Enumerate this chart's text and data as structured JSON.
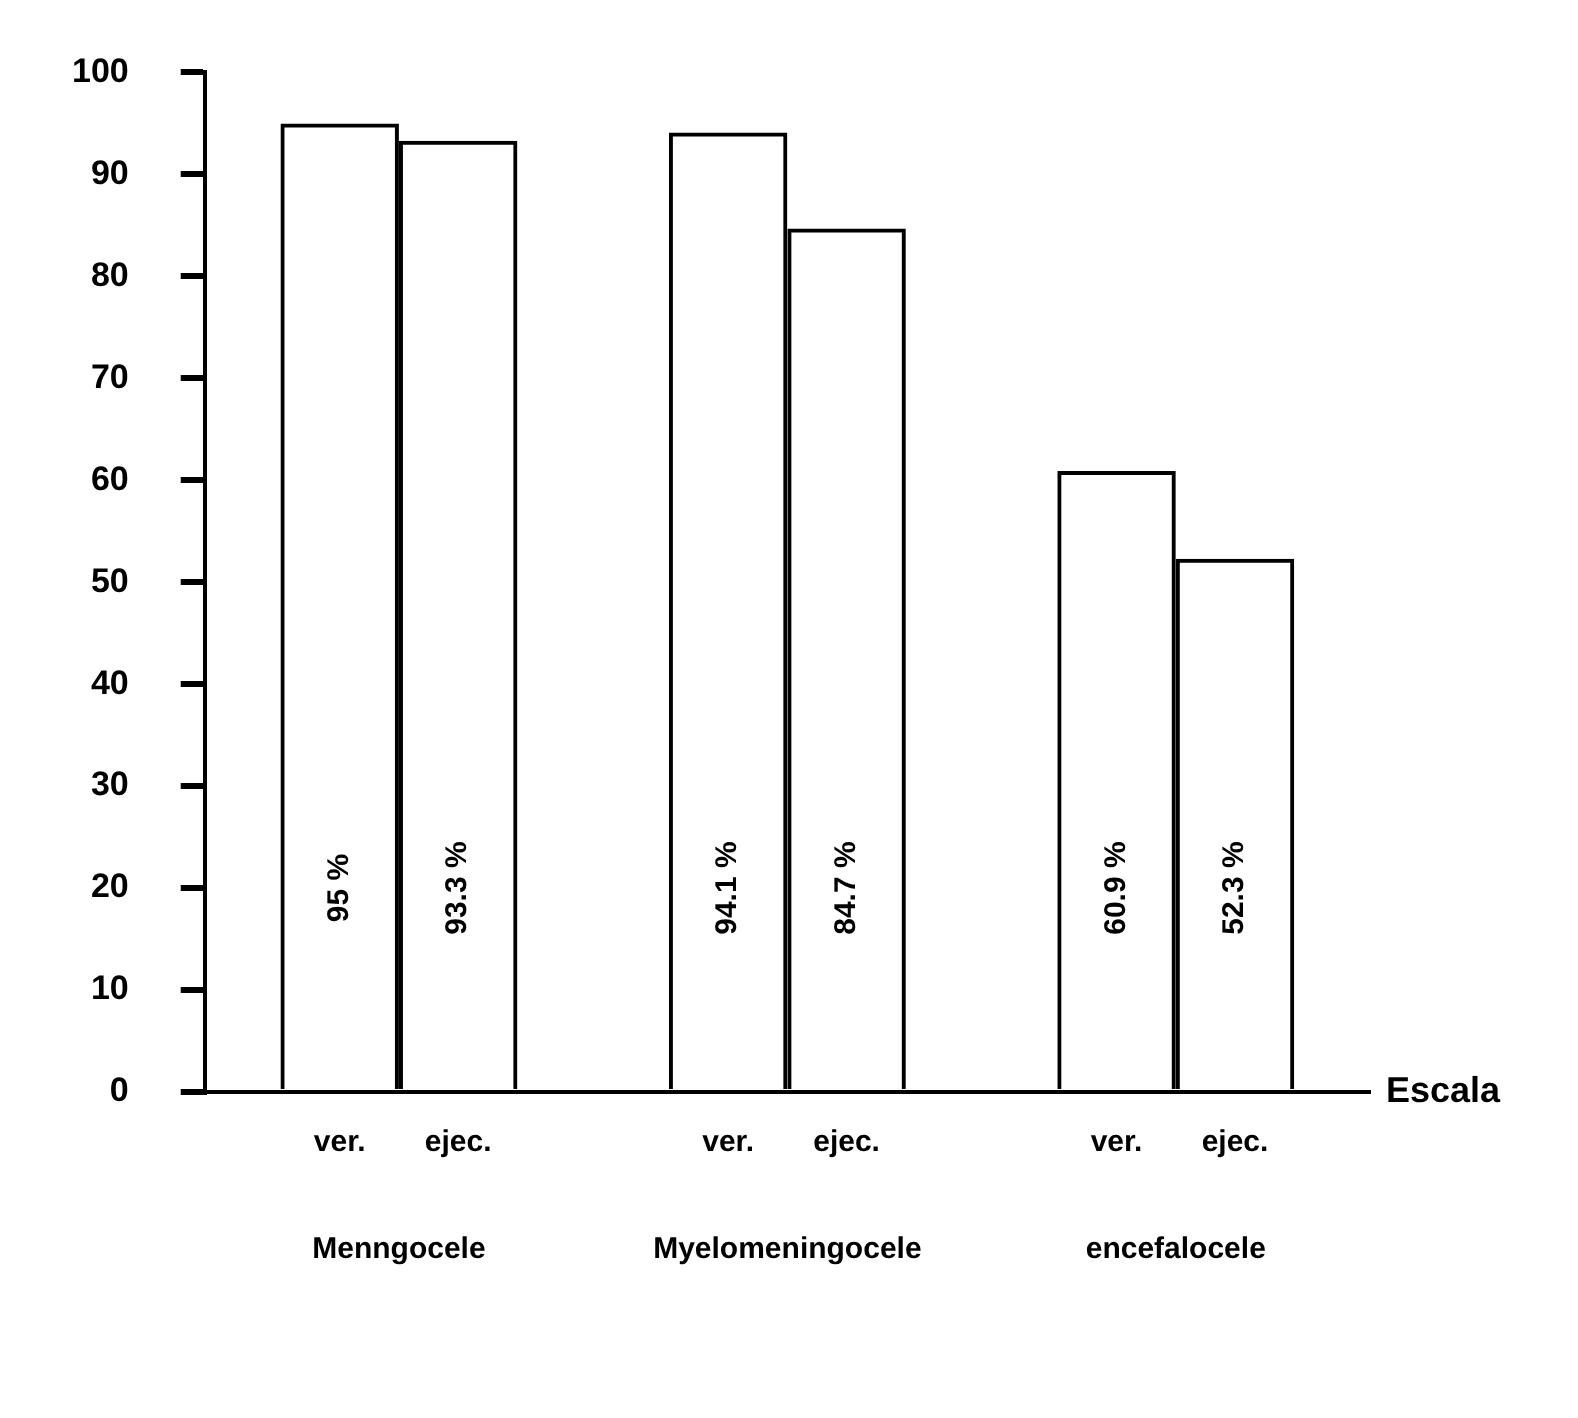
{
  "chart_data": {
    "type": "bar",
    "xlabel": "Escala",
    "categories": [
      "Menngocele",
      "Myelomeningocele",
      "encefalocele"
    ],
    "series": [
      {
        "name": "ver.",
        "color": "#000000",
        "values": [
          95,
          94.1,
          60.9
        ],
        "value_labels": [
          "95 %",
          "94.1 %",
          "60.9 %"
        ]
      },
      {
        "name": "ejec.",
        "color": "#000000",
        "values": [
          93.3,
          84.7,
          52.3
        ],
        "value_labels": [
          "93.3 %",
          "84.7 %",
          "52.3 %"
        ]
      }
    ],
    "ylim": [
      0,
      100
    ],
    "yticks": [
      0,
      10,
      20,
      30,
      40,
      50,
      60,
      70,
      80,
      90,
      100
    ],
    "grid": false,
    "legend": false
  }
}
